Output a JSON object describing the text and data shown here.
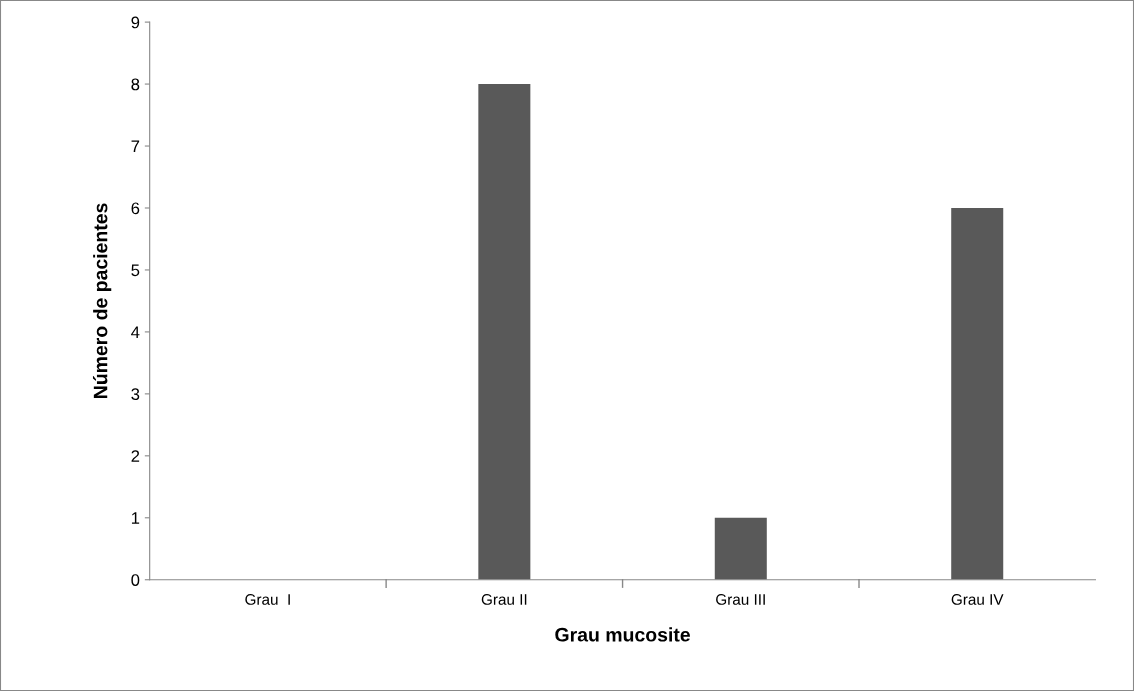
{
  "chart_data": {
    "type": "bar",
    "xlabel": "Grau mucosite",
    "ylabel": "Número de pacientes",
    "categories": [
      "Grau  I",
      "Grau II",
      "Grau III",
      "Grau IV"
    ],
    "values": [
      0,
      8,
      1,
      6
    ],
    "color": "#595959",
    "ylim": [
      0,
      9
    ],
    "yticks": [
      0,
      1,
      2,
      3,
      4,
      5,
      6,
      7,
      8,
      9
    ],
    "grid": false,
    "legend": false
  }
}
